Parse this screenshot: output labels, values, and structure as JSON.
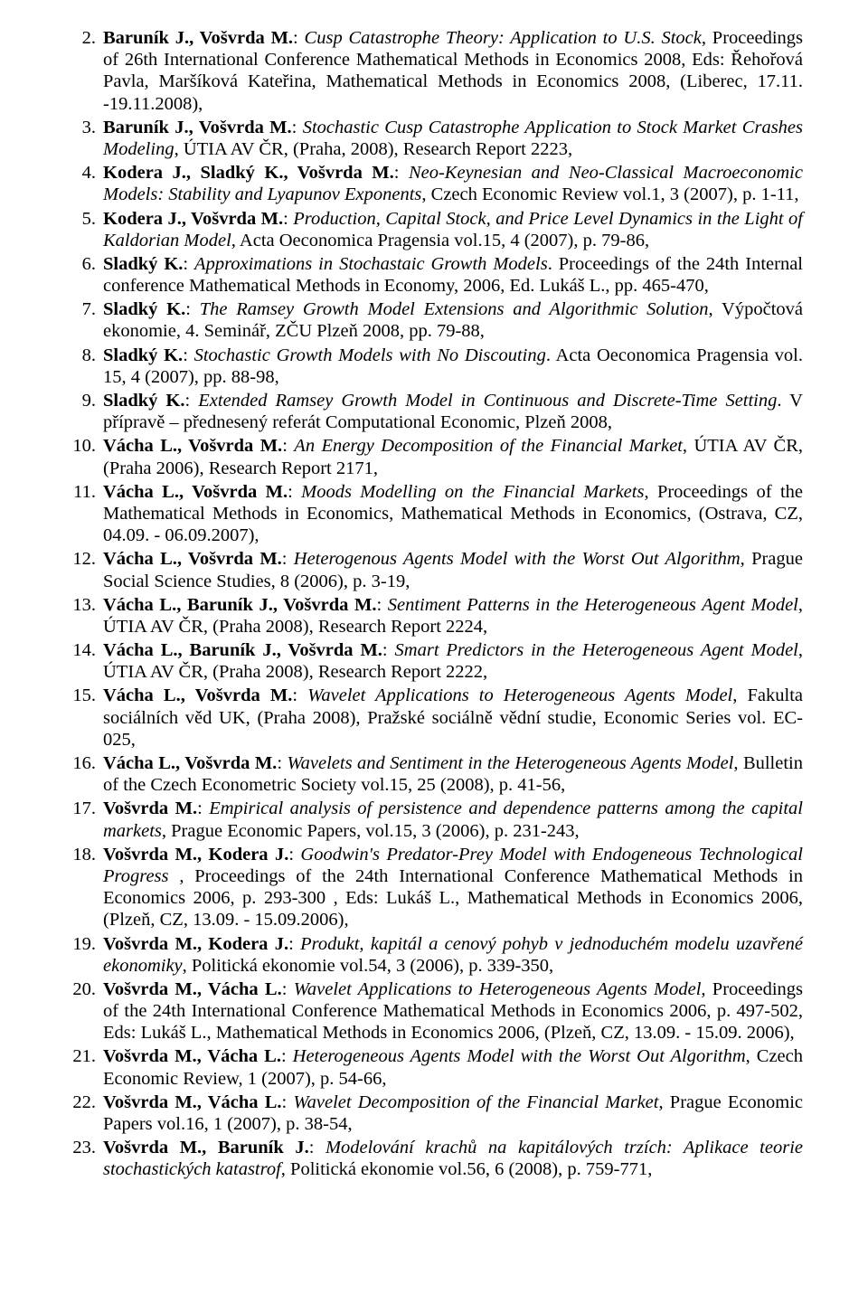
{
  "font_family": "Times New Roman",
  "base_fontsize_pt": 12,
  "text_color": "#000000",
  "background_color": "#ffffff",
  "refs": [
    {
      "n": "2.",
      "segments": [
        {
          "t": "Baruník J., Vošvrda M.",
          "b": true
        },
        {
          "t": ": "
        },
        {
          "t": "Cusp Catastrophe Theory: Application to U.S. Stock",
          "i": true
        },
        {
          "t": ", Proceedings of 26th International Conference Mathematical Methods in Economics 2008, Eds: Řehořová Pavla, Maršíková Kateřina, Mathematical Methods in Economics 2008, (Liberec, 17.11. -19.11.2008),"
        }
      ]
    },
    {
      "n": "3.",
      "segments": [
        {
          "t": "Baruník J., Vošvrda M.",
          "b": true
        },
        {
          "t": ": "
        },
        {
          "t": "Stochastic Cusp Catastrophe Application to Stock Market Crashes Modeling",
          "i": true
        },
        {
          "t": ", ÚTIA AV ČR, (Praha, 2008), Research Report 2223,"
        }
      ]
    },
    {
      "n": "4.",
      "segments": [
        {
          "t": "Kodera J., Sladký K., Vošvrda M.",
          "b": true
        },
        {
          "t": ": "
        },
        {
          "t": "Neo-Keynesian and Neo-Classical Macroeconomic Models: Stability and Lyapunov Exponents",
          "i": true
        },
        {
          "t": ", Czech Economic Review vol.1, 3 (2007), p. 1-11,"
        }
      ]
    },
    {
      "n": "5.",
      "segments": [
        {
          "t": "Kodera J., Vošvrda M.",
          "b": true
        },
        {
          "t": ": "
        },
        {
          "t": "Production, Capital Stock, and Price Level Dynamics in the Light of Kaldorian Model",
          "i": true
        },
        {
          "t": ", Acta Oeconomica Pragensia vol.15, 4 (2007), p. 79-86,"
        }
      ]
    },
    {
      "n": "6.",
      "segments": [
        {
          "t": "Sladký K.",
          "b": true
        },
        {
          "t": ": "
        },
        {
          "t": "Approximations in Stochastaic Growth Models",
          "i": true
        },
        {
          "t": ". Proceedings of the 24th Internal conference Mathematical Methods in Economy, 2006, Ed. Lukáš L., pp. 465-470,"
        }
      ]
    },
    {
      "n": "7.",
      "segments": [
        {
          "t": "Sladký K.",
          "b": true
        },
        {
          "t": ": "
        },
        {
          "t": "The Ramsey Growth Model Extensions and Algorithmic Solution",
          "i": true
        },
        {
          "t": ", Výpočtová ekonomie, 4. Seminář, ZČU Plzeň 2008, pp. 79-88,"
        }
      ]
    },
    {
      "n": "8.",
      "segments": [
        {
          "t": "Sladký K.",
          "b": true
        },
        {
          "t": ": "
        },
        {
          "t": "Stochastic Growth Models with No Discouting",
          "i": true
        },
        {
          "t": ". Acta Oeconomica Pragensia vol. 15, 4  (2007), pp. 88-98,"
        }
      ]
    },
    {
      "n": "9.",
      "segments": [
        {
          "t": "Sladký K.",
          "b": true
        },
        {
          "t": ": "
        },
        {
          "t": "Extended Ramsey Growth Model in Continuous and Discrete-Time Setting",
          "i": true
        },
        {
          "t": ". V přípravě – přednesený referát Computational Economic, Plzeň 2008,"
        }
      ]
    },
    {
      "n": "10.",
      "segments": [
        {
          "t": "Vácha L., Vošvrda M.",
          "b": true
        },
        {
          "t": ": "
        },
        {
          "t": "An Energy Decomposition of the Financial Market",
          "i": true
        },
        {
          "t": ", ÚTIA AV ČR, (Praha 2006), Research Report 2171,"
        }
      ]
    },
    {
      "n": "11.",
      "segments": [
        {
          "t": "Vácha L., Vošvrda M.",
          "b": true
        },
        {
          "t": ": "
        },
        {
          "t": "Moods Modelling on the Financial Markets",
          "i": true
        },
        {
          "t": ", Proceedings of the Mathematical Methods in Economics, Mathematical Methods in Economics, (Ostrava, CZ, 04.09. - 06.09.2007),"
        }
      ]
    },
    {
      "n": "12.",
      "segments": [
        {
          "t": "Vácha L., Vošvrda M.",
          "b": true
        },
        {
          "t": ": "
        },
        {
          "t": "Heterogenous Agents Model with the Worst Out Algorithm",
          "i": true
        },
        {
          "t": ", Prague Social Science Studies, 8 (2006), p. 3-19,"
        }
      ]
    },
    {
      "n": "13.",
      "segments": [
        {
          "t": "Vácha L., Baruník J., Vošvrda M.",
          "b": true
        },
        {
          "t": ": "
        },
        {
          "t": "Sentiment Patterns in the Heterogeneous Agent Model",
          "i": true
        },
        {
          "t": ", ÚTIA AV ČR, (Praha 2008), Research Report 2224,"
        }
      ]
    },
    {
      "n": "14.",
      "segments": [
        {
          "t": "Vácha L., Baruník J., Vošvrda M.",
          "b": true
        },
        {
          "t": ": "
        },
        {
          "t": "Smart Predictors in the Heterogeneous Agent Model",
          "i": true
        },
        {
          "t": ", ÚTIA AV ČR, (Praha 2008), Research Report 2222,"
        }
      ]
    },
    {
      "n": "15.",
      "segments": [
        {
          "t": "Vácha L., Vošvrda M.",
          "b": true
        },
        {
          "t": ": "
        },
        {
          "t": "Wavelet Applications to Heterogeneous Agents Model",
          "i": true
        },
        {
          "t": ", Fakulta sociálních věd UK, (Praha 2008), Pražské sociálně vědní studie, Economic Series vol. EC-025,"
        }
      ]
    },
    {
      "n": "16.",
      "segments": [
        {
          "t": "Vácha L., Vošvrda M.",
          "b": true
        },
        {
          "t": ": "
        },
        {
          "t": "Wavelets and Sentiment in the Heterogeneous Agents Model",
          "i": true
        },
        {
          "t": ", Bulletin of the Czech Econometric Society vol.15, 25 (2008), p. 41-56,"
        }
      ]
    },
    {
      "n": "17.",
      "segments": [
        {
          "t": "Vošvrda M.",
          "b": true
        },
        {
          "t": ": "
        },
        {
          "t": "Empirical analysis of persistence and dependence patterns among the capital markets",
          "i": true
        },
        {
          "t": ", Prague Economic Papers, vol.15, 3 (2006), p. 231-243,"
        }
      ]
    },
    {
      "n": "18.",
      "segments": [
        {
          "t": "Vošvrda M., Kodera J.",
          "b": true
        },
        {
          "t": ": "
        },
        {
          "t": "Goodwin's Predator-Prey Model with Endogeneous Technological Progress ",
          "i": true
        },
        {
          "t": ", Proceedings of the 24th International Conference Mathematical Methods in Economics 2006, p. 293-300 , Eds: Lukáš L., Mathematical Methods in Economics 2006, (Plzeň, CZ, 13.09. - 15.09.2006),"
        }
      ]
    },
    {
      "n": "19.",
      "segments": [
        {
          "t": "Vošvrda M., Kodera J.",
          "b": true
        },
        {
          "t": ": "
        },
        {
          "t": "Produkt, kapitál a cenový pohyb v jednoduchém modelu uzavřené ekonomiky",
          "i": true
        },
        {
          "t": ", Politická ekonomie vol.54, 3 (2006), p. 339-350,"
        }
      ]
    },
    {
      "n": "20.",
      "segments": [
        {
          "t": "Vošvrda M., Vácha L.",
          "b": true
        },
        {
          "t": ": "
        },
        {
          "t": "Wavelet Applications to Heterogeneous Agents Model",
          "i": true
        },
        {
          "t": ", Proceedings of the 24th International Conference Mathematical Methods in Economics 2006, p. 497-502, Eds: Lukáš L., Mathematical Methods in Economics 2006, (Plzeň, CZ, 13.09. - 15.09. 2006),"
        }
      ]
    },
    {
      "n": "21.",
      "segments": [
        {
          "t": "Vošvrda M., Vácha L.",
          "b": true
        },
        {
          "t": ": "
        },
        {
          "t": "Heterogeneous Agents Model with the Worst Out Algorithm",
          "i": true
        },
        {
          "t": ", Czech Economic Review, 1 (2007), p. 54-66,"
        }
      ]
    },
    {
      "n": "22.",
      "segments": [
        {
          "t": "Vošvrda M., Vácha L.",
          "b": true
        },
        {
          "t": ": "
        },
        {
          "t": "Wavelet Decomposition of the Financial Market",
          "i": true
        },
        {
          "t": ", Prague Economic Papers vol.16, 1 (2007), p. 38-54,"
        }
      ]
    },
    {
      "n": "23.",
      "segments": [
        {
          "t": "Vošvrda M., Baruník J.",
          "b": true
        },
        {
          "t": ": "
        },
        {
          "t": "Modelování krachů na kapitálových trzích: Aplikace teorie stochastických katastrof",
          "i": true
        },
        {
          "t": ", Politická ekonomie vol.56, 6 (2008), p. 759-771,"
        }
      ]
    }
  ]
}
